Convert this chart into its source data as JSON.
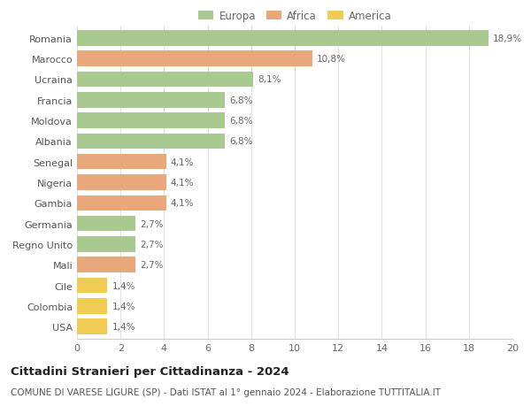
{
  "categories": [
    "Romania",
    "Marocco",
    "Ucraina",
    "Francia",
    "Moldova",
    "Albania",
    "Senegal",
    "Nigeria",
    "Gambia",
    "Germania",
    "Regno Unito",
    "Mali",
    "Cile",
    "Colombia",
    "USA"
  ],
  "values": [
    18.9,
    10.8,
    8.1,
    6.8,
    6.8,
    6.8,
    4.1,
    4.1,
    4.1,
    2.7,
    2.7,
    2.7,
    1.4,
    1.4,
    1.4
  ],
  "labels": [
    "18,9%",
    "10,8%",
    "8,1%",
    "6,8%",
    "6,8%",
    "6,8%",
    "4,1%",
    "4,1%",
    "4,1%",
    "2,7%",
    "2,7%",
    "2,7%",
    "1,4%",
    "1,4%",
    "1,4%"
  ],
  "continent": [
    "Europa",
    "Africa",
    "Europa",
    "Europa",
    "Europa",
    "Europa",
    "Africa",
    "Africa",
    "Africa",
    "Europa",
    "Europa",
    "Africa",
    "America",
    "America",
    "America"
  ],
  "colors": {
    "Europa": "#a8c990",
    "Africa": "#e8a87c",
    "America": "#f0cc55"
  },
  "legend": [
    "Europa",
    "Africa",
    "America"
  ],
  "legend_colors": [
    "#a8c990",
    "#e8a87c",
    "#f0cc55"
  ],
  "xlim": [
    0,
    20
  ],
  "xticks": [
    0,
    2,
    4,
    6,
    8,
    10,
    12,
    14,
    16,
    18,
    20
  ],
  "title": "Cittadini Stranieri per Cittadinanza - 2024",
  "subtitle": "COMUNE DI VARESE LIGURE (SP) - Dati ISTAT al 1° gennaio 2024 - Elaborazione TUTTITALIA.IT",
  "bg_color": "#ffffff",
  "bar_height": 0.75,
  "label_fontsize": 7.5,
  "title_fontsize": 9.5,
  "subtitle_fontsize": 7.5,
  "tick_fontsize": 8,
  "ytick_fontsize": 8,
  "legend_fontsize": 8.5
}
